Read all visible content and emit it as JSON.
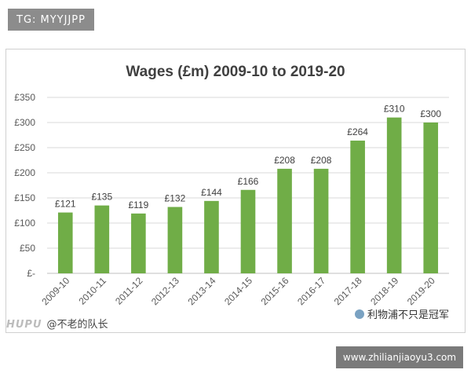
{
  "watermark": {
    "tag": "TG: MYYJJPP",
    "left_brand": "HUPU",
    "left_text": "@不老的队长",
    "right_text": "利物浦不只是冠军",
    "url": "www.zhilianjiaoyu3.com"
  },
  "chart_data": {
    "type": "bar",
    "title": "Wages (£m) 2009-10 to 2019-20",
    "categories": [
      "2009-10",
      "2010-11",
      "2011-12",
      "2012-13",
      "2013-14",
      "2014-15",
      "2015-16",
      "2016-17",
      "2017-18",
      "2018-19",
      "2019-20"
    ],
    "values": [
      121,
      135,
      119,
      132,
      144,
      166,
      208,
      208,
      264,
      310,
      300
    ],
    "data_labels": [
      "£121",
      "£135",
      "£119",
      "£132",
      "£144",
      "£166",
      "£208",
      "£208",
      "£264",
      "£310",
      "£300"
    ],
    "y_ticks": [
      {
        "value": 0,
        "label": "£-"
      },
      {
        "value": 50,
        "label": "£50"
      },
      {
        "value": 100,
        "label": "£100"
      },
      {
        "value": 150,
        "label": "£150"
      },
      {
        "value": 200,
        "label": "£200"
      },
      {
        "value": 250,
        "label": "£250"
      },
      {
        "value": 300,
        "label": "£300"
      },
      {
        "value": 350,
        "label": "£350"
      }
    ],
    "ylim": [
      0,
      350
    ],
    "grid": true,
    "bar_color": "#70ad47"
  }
}
